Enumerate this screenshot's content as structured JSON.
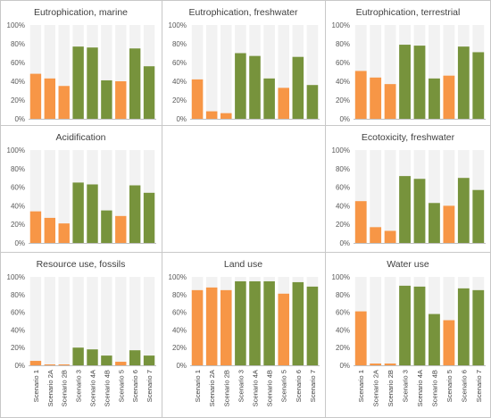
{
  "colors": {
    "scenario_type_a": "#f79646",
    "scenario_type_b": "#77933c",
    "track": "#f2f2f2",
    "border": "#c8c8c8"
  },
  "chart_data": {
    "type": "bar",
    "categories": [
      "Scenario 1",
      "Scenario 2A",
      "Scenario 2B",
      "Scenario 3",
      "Scenario 4A",
      "Scenario 4B",
      "Scenario 5",
      "Scenario 6",
      "Scenario 7"
    ],
    "bar_color_groups": [
      "orange",
      "orange",
      "orange",
      "green",
      "green",
      "green",
      "orange",
      "green",
      "green"
    ],
    "y_ticks": [
      "0%",
      "20%",
      "40%",
      "60%",
      "80%",
      "100%"
    ],
    "ylim": [
      0,
      100
    ],
    "grid": false,
    "panels": [
      {
        "title": "Eutrophication, marine",
        "values": [
          48,
          43,
          35,
          77,
          76,
          41,
          40,
          75,
          56
        ]
      },
      {
        "title": "Eutrophication, freshwater",
        "values": [
          42,
          8,
          6,
          70,
          67,
          43,
          33,
          66,
          36
        ]
      },
      {
        "title": "Eutrophication, terrestrial",
        "values": [
          51,
          44,
          37,
          79,
          78,
          43,
          46,
          77,
          71
        ]
      },
      {
        "title": "Acidification",
        "values": [
          34,
          27,
          21,
          65,
          63,
          35,
          29,
          62,
          54
        ]
      },
      null,
      {
        "title": "Ecotoxicity, freshwater",
        "values": [
          45,
          17,
          13,
          72,
          69,
          43,
          40,
          70,
          57
        ]
      },
      {
        "title": "Resource use, fossils",
        "values": [
          5,
          1,
          1,
          20,
          18,
          11,
          4,
          17,
          11
        ]
      },
      {
        "title": "Land use",
        "values": [
          85,
          88,
          85,
          95,
          95,
          95,
          81,
          94,
          89
        ]
      },
      {
        "title": "Water use",
        "values": [
          61,
          2,
          2,
          90,
          89,
          58,
          51,
          87,
          85
        ]
      }
    ]
  }
}
